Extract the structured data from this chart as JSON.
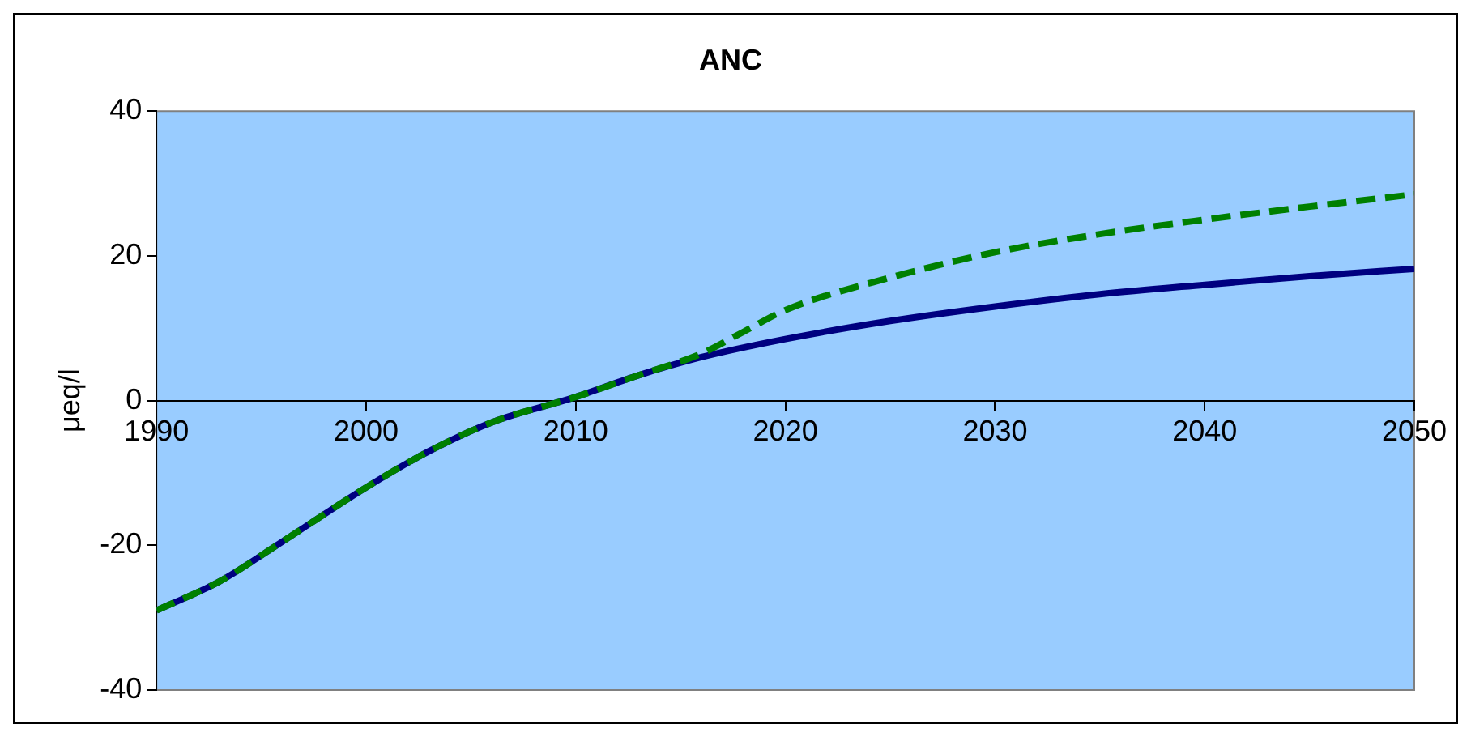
{
  "chart_data": {
    "type": "line",
    "title": "ANC",
    "ylabel": "μeq/l",
    "xlim": [
      1990,
      2050
    ],
    "xticks": [
      1990,
      2000,
      2010,
      2020,
      2030,
      2040,
      2050
    ],
    "ylim": [
      -40,
      40
    ],
    "yticks": [
      -40,
      -20,
      0,
      20,
      40
    ],
    "grid": false,
    "legend": false,
    "marker": "none",
    "series": [
      {
        "color": "#008000",
        "line_style": "dashed",
        "x": [
          1990,
          1993,
          1996,
          2000,
          2003,
          2006,
          2010,
          2013,
          2016,
          2018,
          2020,
          2025,
          2030,
          2035,
          2040,
          2045,
          2050
        ],
        "values": [
          -29,
          -25,
          -19.5,
          -12,
          -7,
          -3,
          0.5,
          3.5,
          6.5,
          9.5,
          12.5,
          17,
          20.5,
          23,
          25,
          26.8,
          28.5
        ]
      },
      {
        "color": "#000080",
        "line_style": "solid",
        "x": [
          1990,
          1993,
          1996,
          2000,
          2003,
          2006,
          2010,
          2013,
          2016,
          2020,
          2025,
          2030,
          2035,
          2040,
          2045,
          2050
        ],
        "values": [
          -29,
          -25,
          -19.5,
          -12,
          -7,
          -3,
          0.5,
          3.5,
          6,
          8.5,
          11,
          13,
          14.7,
          16,
          17.2,
          18.2
        ]
      }
    ]
  }
}
